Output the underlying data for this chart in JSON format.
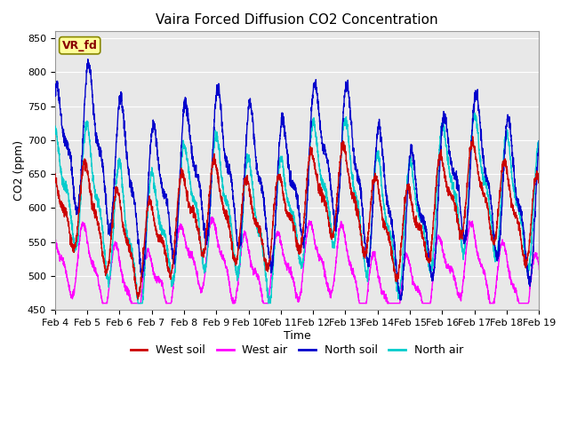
{
  "title": "Vaira Forced Diffusion CO2 Concentration",
  "xlabel": "Time",
  "ylabel": "CO2 (ppm)",
  "ylim": [
    450,
    860
  ],
  "yticks": [
    450,
    500,
    550,
    600,
    650,
    700,
    750,
    800,
    850
  ],
  "xlim": [
    0,
    15
  ],
  "xtick_labels": [
    "Feb 4",
    "Feb 5",
    "Feb 6",
    "Feb 7",
    "Feb 8",
    "Feb 9",
    "Feb 10",
    "Feb 11",
    "Feb 12",
    "Feb 13",
    "Feb 14",
    "Feb 15",
    "Feb 16",
    "Feb 17",
    "Feb 18",
    "Feb 19"
  ],
  "legend_entries": [
    {
      "label": "West soil",
      "color": "#cc0000"
    },
    {
      "label": "West air",
      "color": "#ff00ff"
    },
    {
      "label": "North soil",
      "color": "#0000cc"
    },
    {
      "label": "North air",
      "color": "#00cccc"
    }
  ],
  "watermark_text": "VR_fd",
  "watermark_bg": "#ffff99",
  "watermark_border": "#880000",
  "bg_color": "#e8e8e8",
  "fig_bg": "#ffffff",
  "n_points": 3000,
  "seed": 7,
  "title_fontsize": 11,
  "axis_label_fontsize": 9,
  "tick_fontsize": 8,
  "legend_fontsize": 9,
  "line_width": 1.0
}
